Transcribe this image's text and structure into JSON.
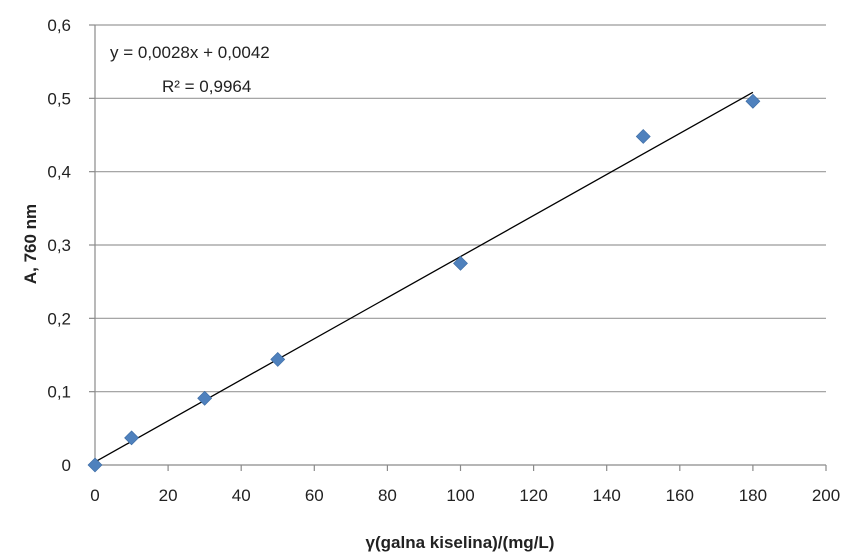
{
  "chart_data": {
    "type": "scatter",
    "xlabel": "γ(galna kiselina)/(mg/L)",
    "ylabel": "A, 760 nm",
    "xlim": [
      0,
      200
    ],
    "ylim": [
      0,
      0.6
    ],
    "x_ticks": [
      "0",
      "20",
      "40",
      "60",
      "80",
      "100",
      "120",
      "140",
      "160",
      "180",
      "200"
    ],
    "y_ticks": [
      "0",
      "0,1",
      "0,2",
      "0,3",
      "0,4",
      "0,5",
      "0,6"
    ],
    "grid": "horizontal",
    "series": [
      {
        "x": [
          0,
          10,
          30,
          50,
          100,
          150,
          180
        ],
        "y": [
          0,
          0.037,
          0.091,
          0.144,
          0.275,
          0.448,
          0.496
        ],
        "marker": "diamond",
        "color": "#4F81BD"
      }
    ],
    "trendline": {
      "slope": 0.0028,
      "intercept": 0.0042,
      "x_range": [
        0,
        180
      ],
      "color": "#000000"
    },
    "annotations": [
      "y = 0,0028x + 0,0042",
      "R² = 0,9964"
    ]
  }
}
